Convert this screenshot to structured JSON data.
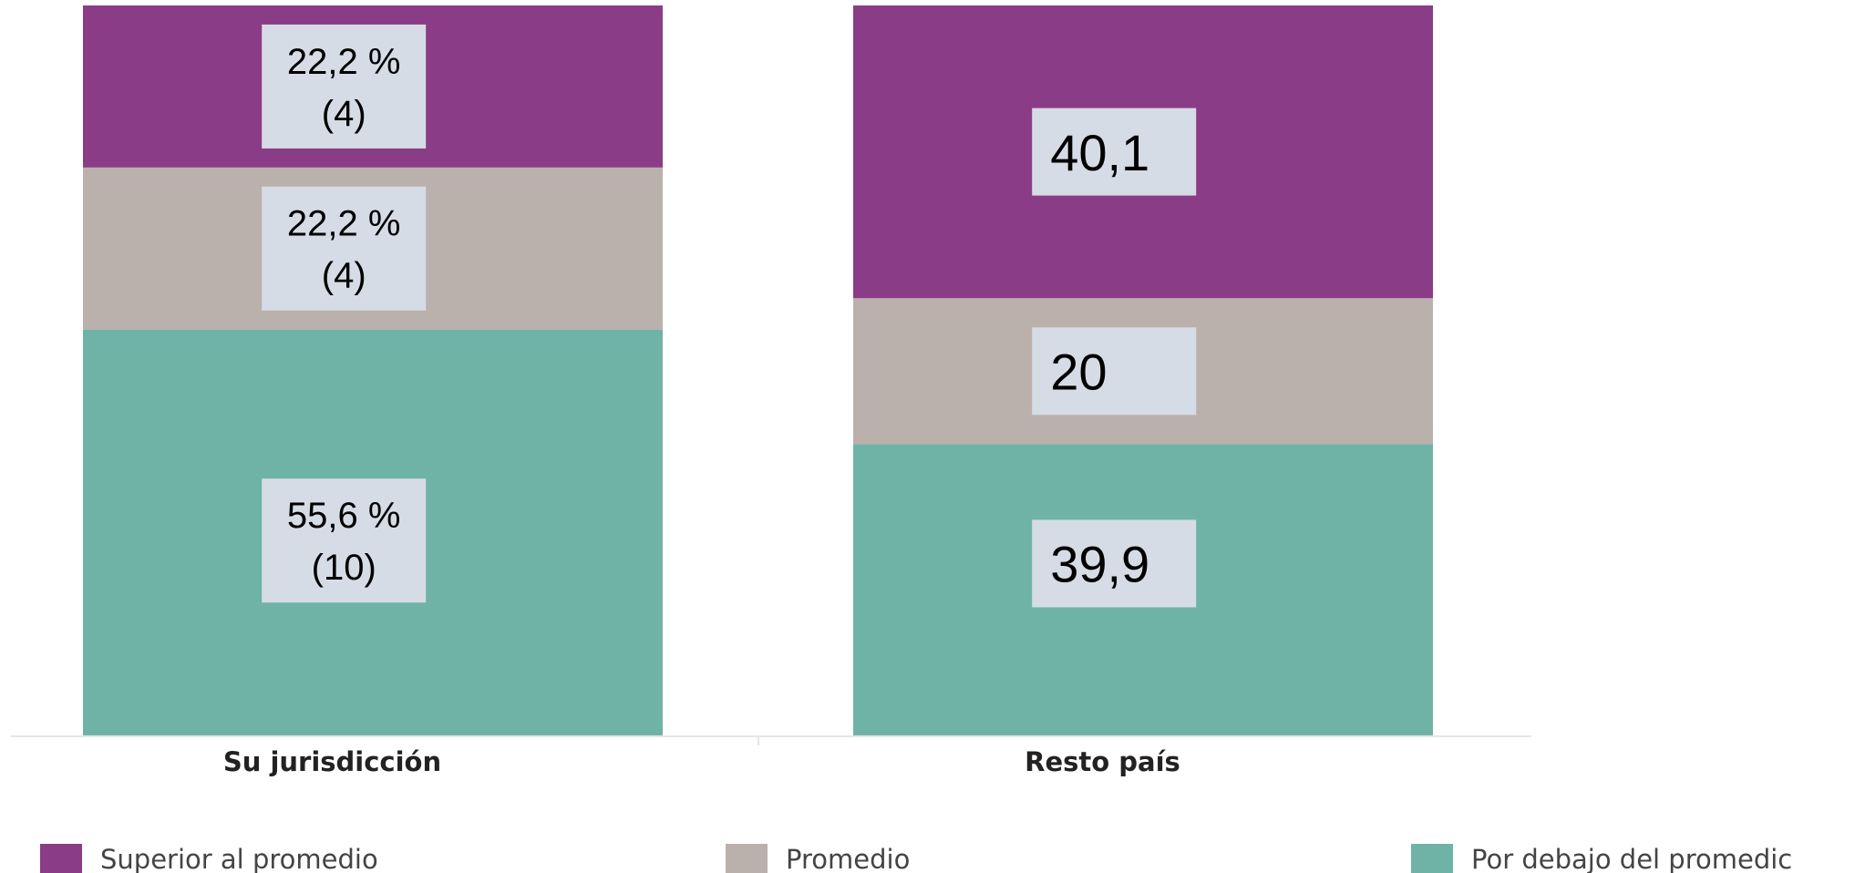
{
  "chart_data": {
    "type": "bar",
    "stacked": true,
    "normalized": true,
    "categories": [
      "Su jurisdicción",
      "Resto país"
    ],
    "series": [
      {
        "name": "Por debajo del promedio",
        "color": "#6fb3a7",
        "values": [
          55.6,
          39.9
        ],
        "labels": [
          [
            "55,6 %",
            "(10)"
          ],
          [
            "39,9"
          ]
        ]
      },
      {
        "name": "Promedio",
        "color": "#bab1ad",
        "values": [
          22.2,
          20
        ],
        "labels": [
          [
            "22,2 %",
            "(4)"
          ],
          [
            "20"
          ]
        ]
      },
      {
        "name": "Superior al promedio",
        "color": "#8b3c86",
        "values": [
          22.2,
          40.1
        ],
        "labels": [
          [
            "22,2 %",
            "(4)"
          ],
          [
            "40,1"
          ]
        ]
      }
    ],
    "legend": {
      "position": "bottom",
      "items": [
        "Superior al promedio",
        "Promedio",
        "Por debajo del promedic"
      ]
    },
    "title": "",
    "xlabel": "",
    "ylabel": ""
  },
  "colors": {
    "label_box": "#d6dce5",
    "axis_line": "#e6e6e6"
  }
}
